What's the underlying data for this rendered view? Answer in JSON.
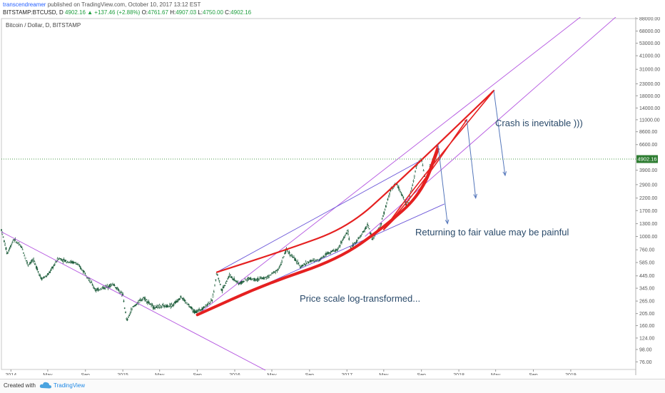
{
  "header": {
    "username": "transcendreamer",
    "published": "published on TradingView.com, October 10, 2017 13:12 EST",
    "symbol": "BITSTAMP:BTCUSD, D",
    "last": "4902.16",
    "change": "+137.46 (+2.88%)",
    "o_label": "O:",
    "o_val": "4761.67",
    "h_label": "H:",
    "h_val": "4907.03",
    "l_label": "L:",
    "l_val": "4750.00",
    "c_label": "C:",
    "c_val": "4902.16"
  },
  "chart_title": "Bitcoin / Dollar, D, BITSTAMP",
  "price_label": "4902.16",
  "annotations": {
    "crash": "Crash is inevitable )))",
    "returning": "Returning to fair value may be painful",
    "logscale": "Price scale log-transformed..."
  },
  "colors": {
    "candle": "#1c5c3a",
    "curve": "#e52020",
    "trendline": "#b455e0",
    "wedge": "#6a55d8",
    "arrow": "#5577bb",
    "annotation_text": "#2a4a6a",
    "price_badge": "#2e7d32"
  },
  "footer": {
    "created": "Created with",
    "brand": "TradingView"
  },
  "chart_data": {
    "type": "candlestick",
    "title": "Bitcoin / Dollar, D, BITSTAMP",
    "y_scale": "log",
    "ylim": [
      65,
      88000
    ],
    "y_ticks": [
      88000,
      68000,
      53000,
      41000,
      31000,
      23000,
      18000,
      14000,
      11000,
      8600,
      6600,
      3900,
      2900,
      2200,
      1700,
      1300,
      1000,
      760,
      585,
      445,
      345,
      265,
      205,
      160,
      124,
      98,
      76
    ],
    "y_tick_labels": [
      "88000.00",
      "68000.00",
      "53000.00",
      "41000.00",
      "31000.00",
      "23000.00",
      "18000.00",
      "14000.00",
      "11000.00",
      "8600.00",
      "6600.00",
      "3900.00",
      "2900.00",
      "2200.00",
      "1700.00",
      "1300.00",
      "1000.00",
      "760.00",
      "585.00",
      "445.00",
      "345.00",
      "265.00",
      "205.00",
      "160.00",
      "124.00",
      "98.00",
      "76.00"
    ],
    "x_range": [
      "2013-12-01",
      "2019-08-01"
    ],
    "x_ticks": [
      {
        "date": "2014-01-01",
        "label": "2014"
      },
      {
        "date": "2014-05-01",
        "label": "May"
      },
      {
        "date": "2014-09-01",
        "label": "Sep"
      },
      {
        "date": "2015-01-01",
        "label": "2015"
      },
      {
        "date": "2015-05-01",
        "label": "May"
      },
      {
        "date": "2015-09-01",
        "label": "Sep"
      },
      {
        "date": "2016-01-01",
        "label": "2016"
      },
      {
        "date": "2016-05-01",
        "label": "May"
      },
      {
        "date": "2016-09-01",
        "label": "Sep"
      },
      {
        "date": "2017-01-01",
        "label": "2017"
      },
      {
        "date": "2017-05-01",
        "label": "May"
      },
      {
        "date": "2017-09-01",
        "label": "Sep"
      },
      {
        "date": "2018-01-01",
        "label": "2018"
      },
      {
        "date": "2018-05-01",
        "label": "May"
      },
      {
        "date": "2018-09-01",
        "label": "Sep"
      },
      {
        "date": "2019-01-01",
        "label": "2019"
      }
    ],
    "last_price": 4902.16,
    "price_path": [
      [
        "2013-12-01",
        1150
      ],
      [
        "2013-12-20",
        700
      ],
      [
        "2014-01-10",
        950
      ],
      [
        "2014-02-05",
        800
      ],
      [
        "2014-02-25",
        560
      ],
      [
        "2014-03-15",
        620
      ],
      [
        "2014-04-10",
        420
      ],
      [
        "2014-05-01",
        450
      ],
      [
        "2014-06-05",
        640
      ],
      [
        "2014-07-01",
        600
      ],
      [
        "2014-08-01",
        580
      ],
      [
        "2014-09-01",
        470
      ],
      [
        "2014-10-05",
        330
      ],
      [
        "2014-11-01",
        350
      ],
      [
        "2014-12-01",
        375
      ],
      [
        "2015-01-01",
        300
      ],
      [
        "2015-01-14",
        175
      ],
      [
        "2015-02-01",
        230
      ],
      [
        "2015-03-10",
        285
      ],
      [
        "2015-04-10",
        235
      ],
      [
        "2015-05-15",
        238
      ],
      [
        "2015-06-15",
        245
      ],
      [
        "2015-07-10",
        290
      ],
      [
        "2015-08-24",
        210
      ],
      [
        "2015-09-20",
        230
      ],
      [
        "2015-10-20",
        270
      ],
      [
        "2015-11-04",
        480
      ],
      [
        "2015-11-20",
        330
      ],
      [
        "2015-12-15",
        450
      ],
      [
        "2016-01-15",
        380
      ],
      [
        "2016-02-15",
        420
      ],
      [
        "2016-03-15",
        415
      ],
      [
        "2016-04-15",
        430
      ],
      [
        "2016-05-25",
        520
      ],
      [
        "2016-06-17",
        760
      ],
      [
        "2016-07-10",
        650
      ],
      [
        "2016-08-02",
        540
      ],
      [
        "2016-09-01",
        600
      ],
      [
        "2016-10-01",
        615
      ],
      [
        "2016-11-01",
        720
      ],
      [
        "2016-12-01",
        760
      ],
      [
        "2017-01-04",
        1130
      ],
      [
        "2017-01-12",
        780
      ],
      [
        "2017-02-15",
        1000
      ],
      [
        "2017-03-10",
        1280
      ],
      [
        "2017-03-25",
        940
      ],
      [
        "2017-04-20",
        1240
      ],
      [
        "2017-05-25",
        2700
      ],
      [
        "2017-06-12",
        2950
      ],
      [
        "2017-06-25",
        2500
      ],
      [
        "2017-07-16",
        1850
      ],
      [
        "2017-08-01",
        2700
      ],
      [
        "2017-08-17",
        4400
      ],
      [
        "2017-09-01",
        4900
      ],
      [
        "2017-09-15",
        3000
      ],
      [
        "2017-09-25",
        3900
      ],
      [
        "2017-10-10",
        4902.16
      ]
    ],
    "overlays": {
      "curves": [
        {
          "name": "upper",
          "points": [
            [
              "2015-11-04",
              480
            ],
            [
              "2016-06-17",
              760
            ],
            [
              "2017-01-04",
              1200
            ],
            [
              "2017-06-12",
              2950
            ],
            [
              "2018-04-25",
              20000
            ]
          ]
        },
        {
          "name": "lower",
          "points": [
            [
              "2015-09-01",
              200
            ],
            [
              "2016-04-15",
              380
            ],
            [
              "2016-12-01",
              620
            ],
            [
              "2017-05-01",
              1200
            ],
            [
              "2017-09-01",
              2400
            ],
            [
              "2017-10-25",
              6000
            ]
          ]
        }
      ],
      "arrows_to": [
        {
          "from": [
            "2017-10-25",
            6600
          ],
          "to": [
            "2017-11-25",
            1300
          ]
        },
        {
          "from": [
            "2018-01-27",
            11000
          ],
          "to": [
            "2018-02-25",
            2200
          ]
        },
        {
          "from": [
            "2018-04-25",
            20000
          ],
          "to": [
            "2018-06-01",
            3500
          ]
        }
      ]
    }
  }
}
